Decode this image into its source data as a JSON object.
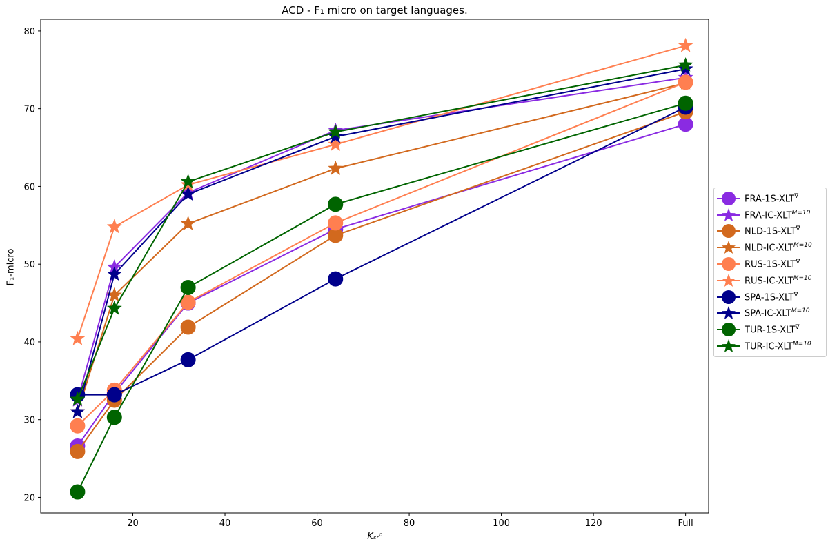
{
  "chart_data": {
    "type": "line",
    "title": "ACD - F₁ micro on target languages.",
    "xlabel": "Kₛᵣᶜ",
    "ylabel": "F₁-micro",
    "xlim": [
      0,
      145
    ],
    "ylim": [
      18,
      81.5
    ],
    "x_ticks": [
      {
        "value": 20,
        "label": "20"
      },
      {
        "value": 40,
        "label": "40"
      },
      {
        "value": 60,
        "label": "60"
      },
      {
        "value": 80,
        "label": "80"
      },
      {
        "value": 100,
        "label": "100"
      },
      {
        "value": 120,
        "label": "120"
      },
      {
        "value": 140,
        "label": "Full"
      }
    ],
    "y_ticks": [
      20,
      30,
      40,
      50,
      60,
      70,
      80
    ],
    "x": [
      8,
      16,
      32,
      64,
      140
    ],
    "grid": false,
    "legend_position": "outside-right",
    "series": [
      {
        "name": "FRA-1S-XLT∇",
        "color": "#8a2be2",
        "marker": "circle",
        "values": [
          26.6,
          33.4,
          45.0,
          54.5,
          68.0
        ]
      },
      {
        "name": "FRA-IC-XLTM=10",
        "color": "#8a2be2",
        "marker": "star",
        "values": [
          32.5,
          49.6,
          59.2,
          67.2,
          74.0
        ]
      },
      {
        "name": "NLD-1S-XLT∇",
        "color": "#d2691e",
        "marker": "circle",
        "values": [
          25.9,
          32.5,
          41.9,
          53.7,
          69.6
        ]
      },
      {
        "name": "NLD-IC-XLTM=10",
        "color": "#d2691e",
        "marker": "star",
        "values": [
          31.0,
          46.0,
          55.2,
          62.3,
          73.3
        ]
      },
      {
        "name": "RUS-1S-XLT∇",
        "color": "#ff7f50",
        "marker": "circle",
        "values": [
          29.2,
          33.8,
          45.1,
          55.3,
          73.4
        ]
      },
      {
        "name": "RUS-IC-XLTM=10",
        "color": "#ff7f50",
        "marker": "star",
        "values": [
          40.4,
          54.8,
          60.2,
          65.4,
          78.1
        ]
      },
      {
        "name": "SPA-1S-XLT∇",
        "color": "#00008b",
        "marker": "circle",
        "values": [
          33.2,
          33.2,
          37.7,
          48.1,
          70.2
        ]
      },
      {
        "name": "SPA-IC-XLTM=10",
        "color": "#00008b",
        "marker": "star",
        "values": [
          31.0,
          48.7,
          59.0,
          66.4,
          75.1
        ]
      },
      {
        "name": "TUR-1S-XLT∇",
        "color": "#006400",
        "marker": "circle",
        "values": [
          20.7,
          30.3,
          47.0,
          57.7,
          70.7
        ]
      },
      {
        "name": "TUR-IC-XLTM=10",
        "color": "#006400",
        "marker": "star",
        "values": [
          32.6,
          44.3,
          60.6,
          67.0,
          75.6
        ]
      }
    ]
  },
  "legend_labels": [
    {
      "base": "FRA-1S-XLT",
      "sup": "∇"
    },
    {
      "base": "FRA-IC-XLT",
      "sup": "M=10"
    },
    {
      "base": "NLD-1S-XLT",
      "sup": "∇"
    },
    {
      "base": "NLD-IC-XLT",
      "sup": "M=10"
    },
    {
      "base": "RUS-1S-XLT",
      "sup": "∇"
    },
    {
      "base": "RUS-IC-XLT",
      "sup": "M=10"
    },
    {
      "base": "SPA-1S-XLT",
      "sup": "∇"
    },
    {
      "base": "SPA-IC-XLT",
      "sup": "M=10"
    },
    {
      "base": "TUR-1S-XLT",
      "sup": "∇"
    },
    {
      "base": "TUR-IC-XLT",
      "sup": "M=10"
    }
  ]
}
